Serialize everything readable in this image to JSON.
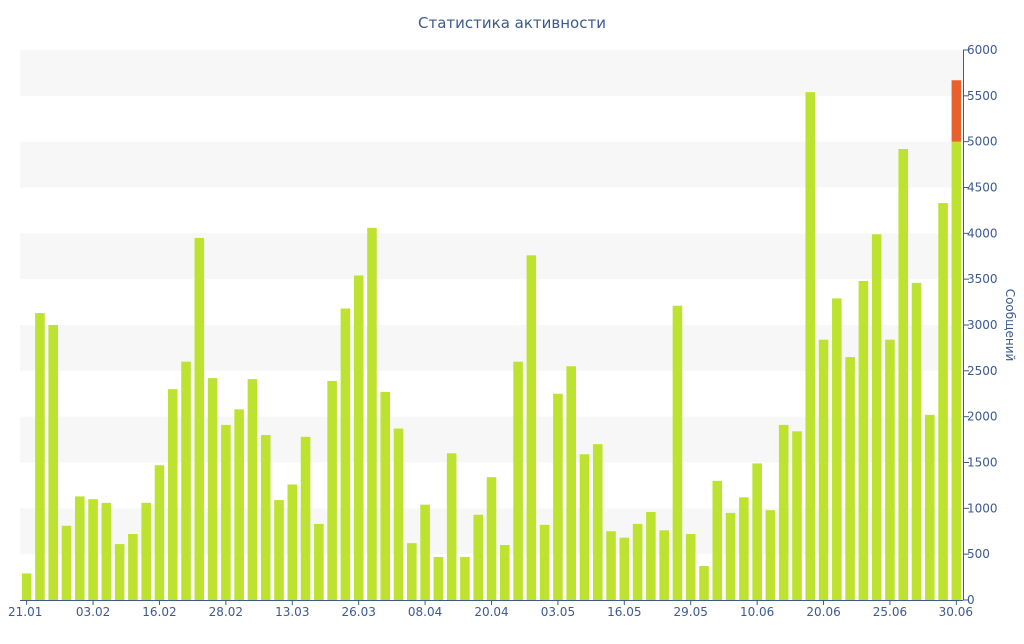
{
  "chart_data": {
    "type": "bar",
    "title": "Статистика активности",
    "ylabel": "Сообщений",
    "xlabel": "",
    "ylim": [
      0,
      6000
    ],
    "y_ticks": [
      0,
      500,
      1000,
      1500,
      2000,
      2500,
      3000,
      3500,
      4000,
      4500,
      5000,
      5500,
      6000
    ],
    "y_axis_side": "right",
    "grid": "alternating horizontal bands",
    "x_tick_labels": [
      {
        "index": 0,
        "label": "21.01"
      },
      {
        "index": 5,
        "label": "03.02"
      },
      {
        "index": 10,
        "label": "16.02"
      },
      {
        "index": 15,
        "label": "28.02"
      },
      {
        "index": 20,
        "label": "13.03"
      },
      {
        "index": 25,
        "label": "26.03"
      },
      {
        "index": 30,
        "label": "08.04"
      },
      {
        "index": 35,
        "label": "20.04"
      },
      {
        "index": 40,
        "label": "03.05"
      },
      {
        "index": 45,
        "label": "16.05"
      },
      {
        "index": 50,
        "label": "29.05"
      },
      {
        "index": 55,
        "label": "10.06"
      },
      {
        "index": 60,
        "label": "20.06"
      },
      {
        "index": 65,
        "label": "25.06"
      },
      {
        "index": 70,
        "label": "30.06"
      }
    ],
    "values": [
      290,
      3130,
      3000,
      810,
      1130,
      1100,
      1060,
      610,
      720,
      1060,
      1470,
      2300,
      2600,
      3950,
      2420,
      1910,
      2080,
      2410,
      1800,
      1090,
      1260,
      1780,
      830,
      2390,
      3180,
      3540,
      4060,
      2270,
      1870,
      620,
      1040,
      470,
      1600,
      470,
      930,
      1340,
      600,
      2600,
      3760,
      820,
      2250,
      2550,
      1590,
      1700,
      750,
      680,
      830,
      960,
      760,
      3210,
      720,
      370,
      1300,
      950,
      1120,
      1490,
      980,
      1910,
      1840,
      5540,
      2840,
      3290,
      2650,
      3480,
      3990,
      2840,
      4920,
      3460,
      2020,
      4330,
      5000
    ],
    "overflow": {
      "index": 70,
      "value": 670
    },
    "colors": {
      "bar": "#bde22f",
      "overflow": "#e8612c",
      "text": "#3b5a8f",
      "band": "#f7f7f7",
      "axis": "#3b5a8f"
    }
  }
}
